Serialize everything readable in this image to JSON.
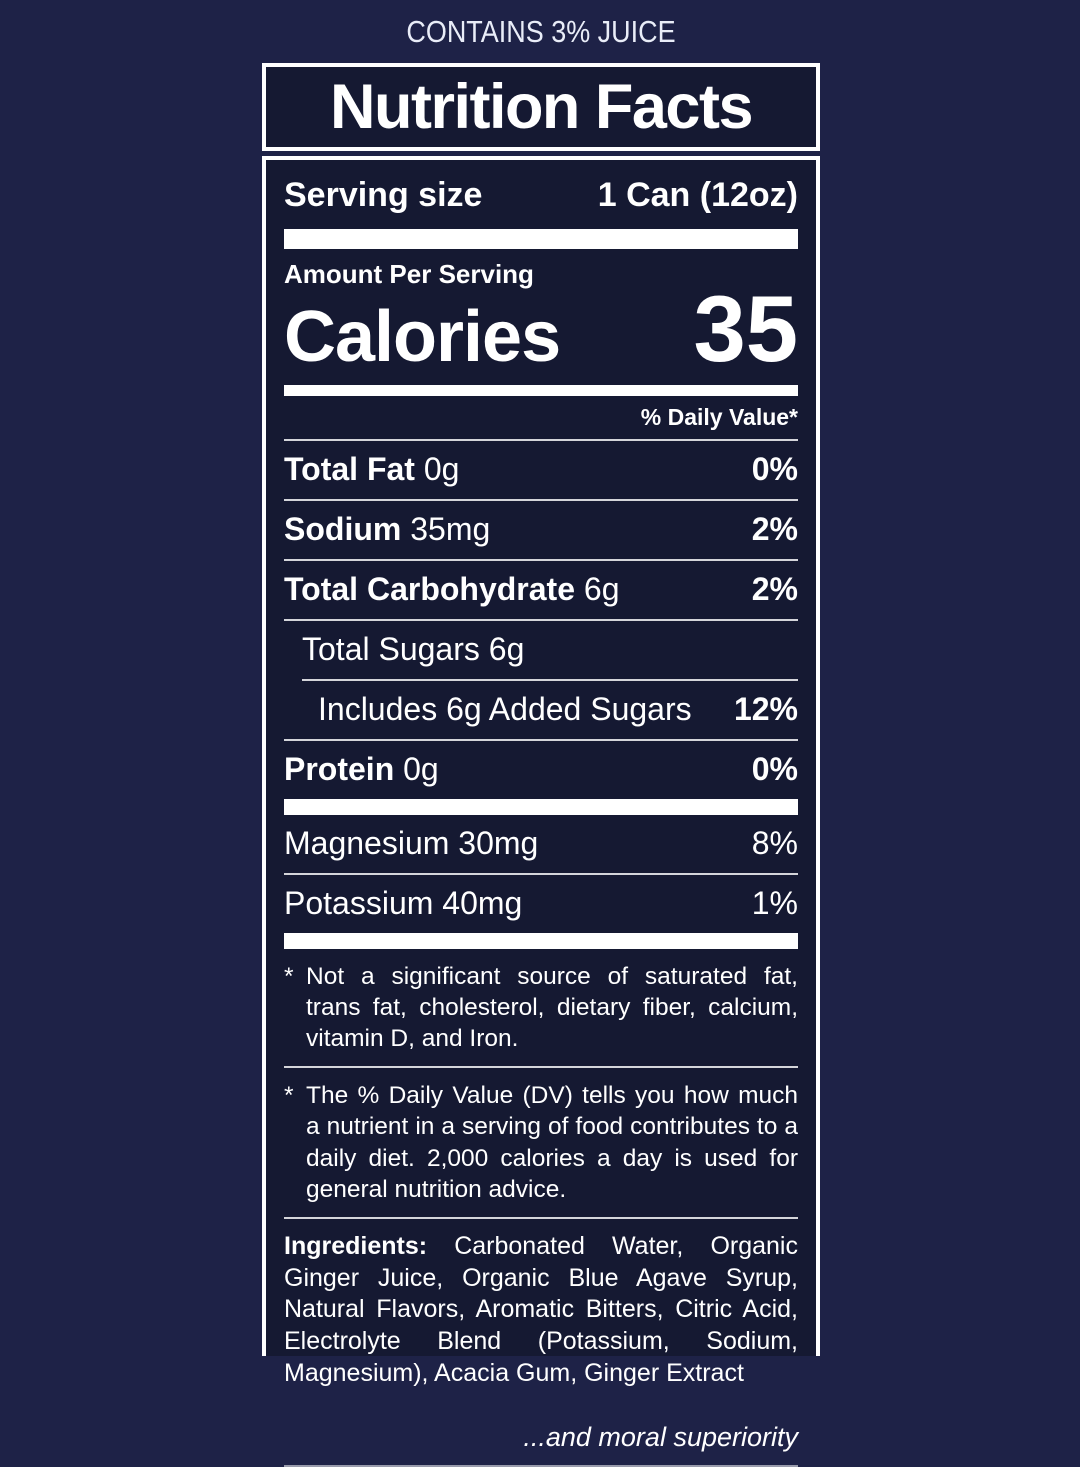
{
  "palette": {
    "background_outer": "#1e2247",
    "background_inner": "#151932",
    "text": "#ffffff"
  },
  "header": {
    "contains_text": "CONTAINS 3% JUICE",
    "title": "Nutrition Facts"
  },
  "serving": {
    "label": "Serving size",
    "value": "1 Can (12oz)",
    "amount_per_serving": "Amount Per Serving"
  },
  "calories": {
    "label": "Calories",
    "value": "35"
  },
  "daily_value_header": "% Daily Value*",
  "rows": {
    "total_fat": {
      "name": "Total Fat",
      "amount": "0g",
      "pct": "0%"
    },
    "sodium": {
      "name": "Sodium",
      "amount": "35mg",
      "pct": "2%"
    },
    "total_carbohydrate": {
      "name": "Total Carbohydrate",
      "amount": "6g",
      "pct": "2%"
    },
    "total_sugars": {
      "label": "Total Sugars 6g"
    },
    "added_sugars": {
      "label": "Includes 6g Added Sugars",
      "pct": "12%"
    },
    "protein": {
      "name": "Protein",
      "amount": "0g",
      "pct": "0%"
    },
    "magnesium": {
      "label": "Magnesium 30mg",
      "pct": "8%"
    },
    "potassium": {
      "label": "Potassium 40mg",
      "pct": "1%"
    }
  },
  "footnotes": [
    "Not a significant source of saturated fat, trans fat, cholesterol, dietary fiber, calcium, vitamin D, and Iron.",
    "The % Daily Value (DV) tells you how much a nutrient in a serving of food contributes to a daily diet. 2,000 calories a day is used for general nutrition advice."
  ],
  "ingredients": {
    "label": "Ingredients:",
    "text": "Carbonated Water, Organic Ginger Juice, Organic Blue Agave Syrup, Natural Flavors, Aromatic Bitters, Citric Acid, Electrolyte Blend (Potassium, Sodium, Magnesium), Acacia Gum, Ginger Extract"
  },
  "tagline": "...and moral superiority"
}
